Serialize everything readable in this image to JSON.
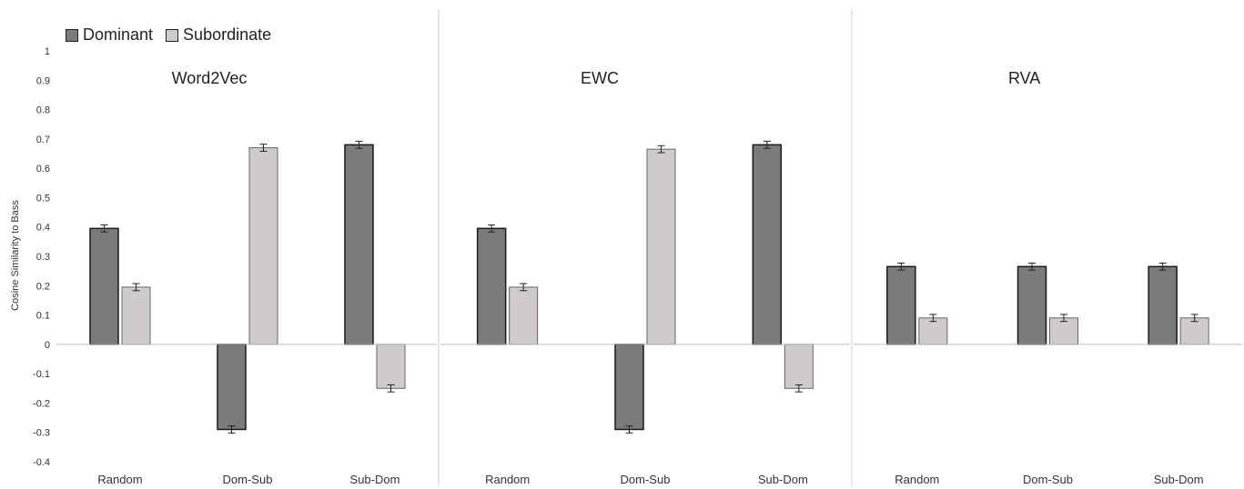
{
  "chart_data": {
    "type": "bar",
    "ylabel": "Cosine Similarity to Bass",
    "ylim": [
      -0.4,
      1
    ],
    "yticks": [
      1,
      0.9,
      0.8,
      0.7,
      0.6,
      0.5,
      0.4,
      0.3,
      0.2,
      0.1,
      0,
      -0.1,
      -0.2,
      -0.3,
      -0.4
    ],
    "legend": {
      "position": "top-left",
      "entries": [
        {
          "name": "Dominant",
          "color": "#7b7b7b"
        },
        {
          "name": "Subordinate",
          "color": "#cfcbcb"
        }
      ]
    },
    "grid": false,
    "panels": [
      {
        "title": "Word2Vec",
        "categories": [
          "Random",
          "Dom-Sub",
          "Sub-Dom"
        ],
        "series": [
          {
            "name": "Dominant",
            "values": [
              0.395,
              -0.29,
              0.68
            ]
          },
          {
            "name": "Subordinate",
            "values": [
              0.195,
              0.67,
              -0.15
            ]
          }
        ]
      },
      {
        "title": "EWC",
        "categories": [
          "Random",
          "Dom-Sub",
          "Sub-Dom"
        ],
        "series": [
          {
            "name": "Dominant",
            "values": [
              0.395,
              -0.29,
              0.68
            ]
          },
          {
            "name": "Subordinate",
            "values": [
              0.195,
              0.665,
              -0.15
            ]
          }
        ]
      },
      {
        "title": "RVA",
        "categories": [
          "Random",
          "Dom-Sub",
          "Sub-Dom"
        ],
        "series": [
          {
            "name": "Dominant",
            "values": [
              0.265,
              0.265,
              0.265
            ]
          },
          {
            "name": "Subordinate",
            "values": [
              0.09,
              0.09,
              0.09
            ]
          }
        ]
      }
    ]
  }
}
